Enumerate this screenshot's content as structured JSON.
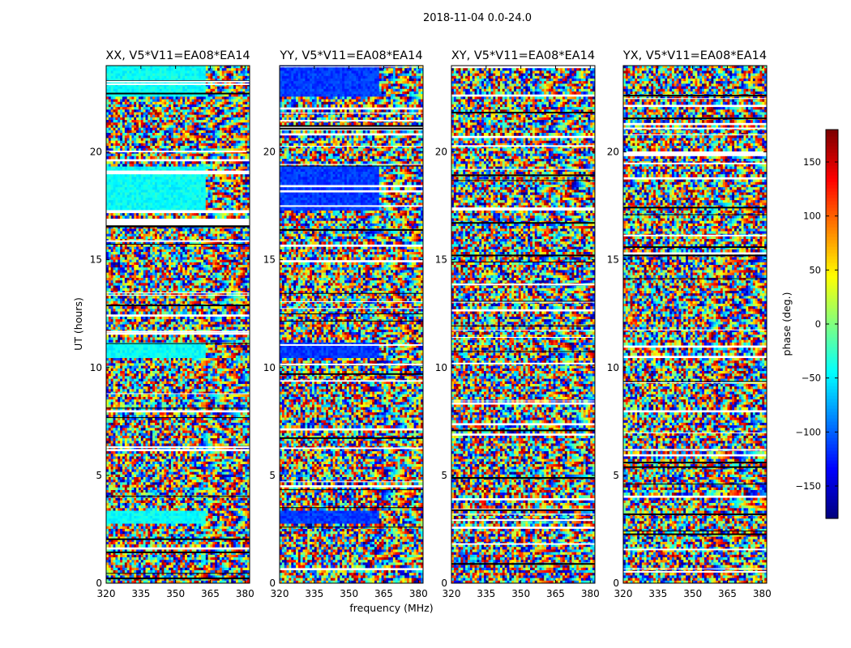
{
  "chart_data": {
    "type": "heatmap",
    "suptitle": "2018-11-04 0.0-24.0",
    "xlabel": "frequency (MHz)",
    "ylabel": "UT (hours)",
    "xlim": [
      320,
      382
    ],
    "ylim": [
      0,
      24
    ],
    "xticks": [
      320,
      335,
      350,
      365,
      380
    ],
    "yticks": [
      0,
      5,
      10,
      15,
      20
    ],
    "panels": [
      {
        "title": "XX, V5*V11=EA08*EA14",
        "pol": "XX"
      },
      {
        "title": "YY, V5*V11=EA08*EA14",
        "pol": "YY"
      },
      {
        "title": "XY, V5*V11=EA08*EA14",
        "pol": "XY"
      },
      {
        "title": "YX, V5*V11=EA08*EA14",
        "pol": "YX"
      }
    ],
    "colorbar": {
      "label": "phase (deg.)",
      "range": [
        -180,
        180
      ],
      "ticks": [
        -150,
        -100,
        -50,
        0,
        50,
        100,
        150
      ],
      "tick_labels": [
        "−150",
        "−100",
        "−50",
        "0",
        "50",
        "100",
        "150"
      ],
      "colormap": "jet"
    }
  }
}
